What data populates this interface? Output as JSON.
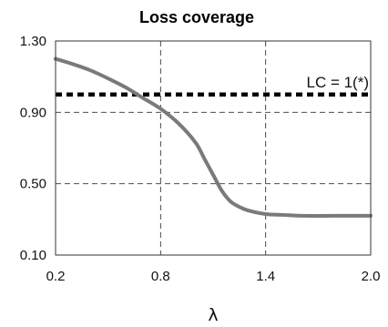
{
  "chart_data": {
    "type": "line",
    "title": "Loss coverage",
    "xlabel": "λ",
    "ylabel": "",
    "xlim": [
      0.2,
      2.0
    ],
    "ylim": [
      0.1,
      1.3
    ],
    "xticks": [
      0.2,
      0.8,
      1.4,
      2.0
    ],
    "xtick_labels": [
      "0.2",
      "0.8",
      "1.4",
      "2.0"
    ],
    "yticks": [
      0.1,
      0.5,
      0.9,
      1.3
    ],
    "ytick_labels": [
      "0.10",
      "0.50",
      "0.90",
      "1.30"
    ],
    "grid": true,
    "series": [
      {
        "color": "#7a7a7a",
        "x": [
          0.2,
          0.3,
          0.4,
          0.5,
          0.6,
          0.7,
          0.8,
          0.9,
          1.0,
          1.05,
          1.1,
          1.15,
          1.2,
          1.25,
          1.3,
          1.4,
          1.5,
          1.6,
          1.8,
          2.0
        ],
        "y": [
          1.2,
          1.17,
          1.135,
          1.09,
          1.04,
          0.98,
          0.92,
          0.84,
          0.73,
          0.64,
          0.55,
          0.46,
          0.4,
          0.37,
          0.35,
          0.33,
          0.325,
          0.32,
          0.32,
          0.32
        ]
      }
    ],
    "reference_line": {
      "y": 1.0,
      "label": "LC = 1(*)",
      "style": "dotted",
      "color": "#000000"
    }
  }
}
